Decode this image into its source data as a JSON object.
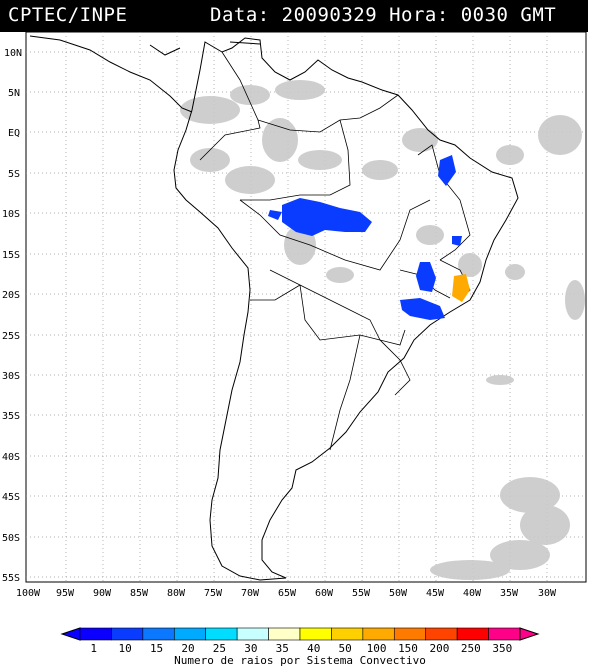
{
  "header": {
    "source": "CPTEC/INPE",
    "datetime": "Data: 20090329 Hora: 0030 GMT"
  },
  "map": {
    "lat_labels": [
      "10N",
      "5N",
      "EQ",
      "5S",
      "10S",
      "15S",
      "20S",
      "25S",
      "30S",
      "35S",
      "40S",
      "45S",
      "50S",
      "55S"
    ],
    "lon_labels": [
      "100W",
      "95W",
      "90W",
      "85W",
      "80W",
      "75W",
      "70W",
      "65W",
      "60W",
      "55W",
      "50W",
      "45W",
      "40W",
      "35W",
      "30W"
    ]
  },
  "legend": {
    "ticks": [
      "1",
      "10",
      "15",
      "20",
      "25",
      "30",
      "35",
      "40",
      "50",
      "100",
      "150",
      "200",
      "250",
      "350"
    ],
    "title": "Numero de raios por Sistema Convectivo",
    "colors": [
      "#0b00ff",
      "#0a3cff",
      "#0c78ff",
      "#00aaff",
      "#00ddff",
      "#c8ffff",
      "#ffffc8",
      "#ffff00",
      "#ffd000",
      "#ffaa00",
      "#ff7b00",
      "#ff4400",
      "#ff0000",
      "#ff0088"
    ]
  }
}
